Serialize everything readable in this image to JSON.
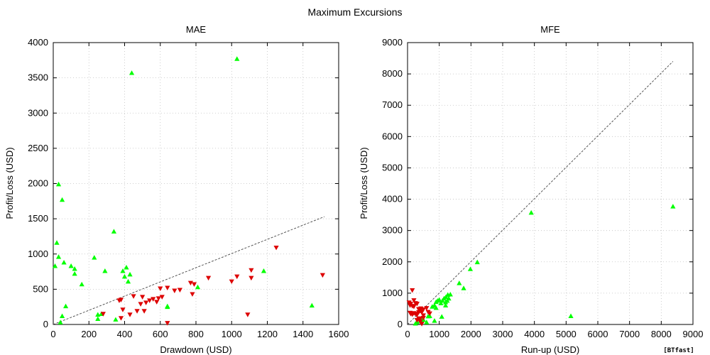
{
  "title": "Maximum Excursions",
  "watermark": "[BTfast]",
  "colors": {
    "win": "#00ff00",
    "loss": "#dd0000",
    "grid": "#c0c0c0",
    "diag": "#444444"
  },
  "chart_data": [
    {
      "type": "scatter",
      "title": "MAE",
      "xlabel": "Drawdown (USD)",
      "ylabel": "Profit/Loss (USD)",
      "xlim": [
        0,
        1600
      ],
      "ylim": [
        0,
        4000
      ],
      "xticks": [
        0,
        200,
        400,
        600,
        800,
        1000,
        1200,
        1400,
        1600
      ],
      "yticks": [
        0,
        500,
        1000,
        1500,
        2000,
        2500,
        3000,
        3500,
        4000
      ],
      "grid": true,
      "reference_line": [
        [
          0,
          0
        ],
        [
          1520,
          1530
        ]
      ],
      "series": [
        {
          "marker": "triangle-up",
          "color": "#00ff00",
          "points": [
            [
              1030,
              3770
            ],
            [
              440,
              3570
            ],
            [
              30,
              1990
            ],
            [
              50,
              1770
            ],
            [
              20,
              1160
            ],
            [
              340,
              1320
            ],
            [
              30,
              960
            ],
            [
              10,
              830
            ],
            [
              60,
              880
            ],
            [
              100,
              830
            ],
            [
              120,
              790
            ],
            [
              120,
              720
            ],
            [
              230,
              950
            ],
            [
              290,
              760
            ],
            [
              390,
              760
            ],
            [
              410,
              810
            ],
            [
              430,
              710
            ],
            [
              400,
              680
            ],
            [
              420,
              610
            ],
            [
              160,
              570
            ],
            [
              50,
              120
            ],
            [
              40,
              30
            ],
            [
              70,
              260
            ],
            [
              250,
              140
            ],
            [
              270,
              150
            ],
            [
              250,
              80
            ],
            [
              350,
              70
            ],
            [
              640,
              250
            ],
            [
              640,
              260
            ],
            [
              810,
              530
            ],
            [
              1180,
              760
            ],
            [
              1450,
              270
            ]
          ]
        },
        {
          "marker": "triangle-down",
          "color": "#dd0000",
          "points": [
            [
              1250,
              1090
            ],
            [
              1510,
              700
            ],
            [
              1110,
              770
            ],
            [
              1110,
              660
            ],
            [
              1030,
              680
            ],
            [
              1000,
              610
            ],
            [
              870,
              660
            ],
            [
              770,
              590
            ],
            [
              790,
              570
            ],
            [
              780,
              430
            ],
            [
              710,
              490
            ],
            [
              680,
              480
            ],
            [
              640,
              520
            ],
            [
              600,
              510
            ],
            [
              610,
              390
            ],
            [
              590,
              370
            ],
            [
              580,
              320
            ],
            [
              560,
              360
            ],
            [
              540,
              340
            ],
            [
              520,
              310
            ],
            [
              500,
              390
            ],
            [
              490,
              290
            ],
            [
              510,
              190
            ],
            [
              470,
              190
            ],
            [
              450,
              400
            ],
            [
              380,
              350
            ],
            [
              390,
              210
            ],
            [
              430,
              140
            ],
            [
              380,
              90
            ],
            [
              280,
              150
            ],
            [
              640,
              20
            ],
            [
              1090,
              140
            ],
            [
              370,
              340
            ]
          ]
        }
      ]
    },
    {
      "type": "scatter",
      "title": "MFE",
      "xlabel": "Run-up (USD)",
      "ylabel": "Profit/Loss (USD)",
      "xlim": [
        0,
        9000
      ],
      "ylim": [
        0,
        9000
      ],
      "xticks": [
        0,
        1000,
        2000,
        3000,
        4000,
        5000,
        6000,
        7000,
        8000,
        9000
      ],
      "yticks": [
        0,
        1000,
        2000,
        3000,
        4000,
        5000,
        6000,
        7000,
        8000,
        9000
      ],
      "grid": true,
      "reference_line": [
        [
          0,
          0
        ],
        [
          8370,
          8400
        ]
      ],
      "series": [
        {
          "marker": "triangle-up",
          "color": "#00ff00",
          "points": [
            [
              8370,
              3770
            ],
            [
              3900,
              3570
            ],
            [
              5150,
              270
            ],
            [
              2200,
              1990
            ],
            [
              1980,
              1770
            ],
            [
              1630,
              1320
            ],
            [
              1770,
              1160
            ],
            [
              1350,
              960
            ],
            [
              1270,
              950
            ],
            [
              1210,
              880
            ],
            [
              1300,
              830
            ],
            [
              1150,
              830
            ],
            [
              1000,
              790
            ],
            [
              950,
              760
            ],
            [
              1100,
              760
            ],
            [
              900,
              720
            ],
            [
              1200,
              710
            ],
            [
              1050,
              680
            ],
            [
              850,
              610
            ],
            [
              780,
              570
            ],
            [
              900,
              530
            ],
            [
              1200,
              610
            ],
            [
              1250,
              760
            ],
            [
              700,
              270
            ],
            [
              650,
              260
            ],
            [
              500,
              150
            ],
            [
              450,
              140
            ],
            [
              400,
              120
            ],
            [
              300,
              80
            ],
            [
              600,
              70
            ],
            [
              250,
              30
            ],
            [
              1080,
              250
            ],
            [
              850,
              120
            ]
          ]
        },
        {
          "marker": "triangle-down",
          "color": "#dd0000",
          "points": [
            [
              150,
              1090
            ],
            [
              50,
              700
            ],
            [
              200,
              770
            ],
            [
              100,
              660
            ],
            [
              250,
              680
            ],
            [
              80,
              610
            ],
            [
              300,
              660
            ],
            [
              150,
              590
            ],
            [
              200,
              570
            ],
            [
              400,
              430
            ],
            [
              350,
              490
            ],
            [
              500,
              480
            ],
            [
              600,
              520
            ],
            [
              420,
              510
            ],
            [
              450,
              390
            ],
            [
              80,
              370
            ],
            [
              150,
              320
            ],
            [
              200,
              360
            ],
            [
              250,
              340
            ],
            [
              300,
              310
            ],
            [
              350,
              390
            ],
            [
              500,
              290
            ],
            [
              400,
              190
            ],
            [
              350,
              190
            ],
            [
              650,
              400
            ],
            [
              700,
              350
            ],
            [
              500,
              210
            ],
            [
              300,
              140
            ],
            [
              400,
              90
            ],
            [
              380,
              150
            ],
            [
              450,
              20
            ],
            [
              300,
              140
            ],
            [
              100,
              340
            ]
          ]
        }
      ]
    }
  ]
}
